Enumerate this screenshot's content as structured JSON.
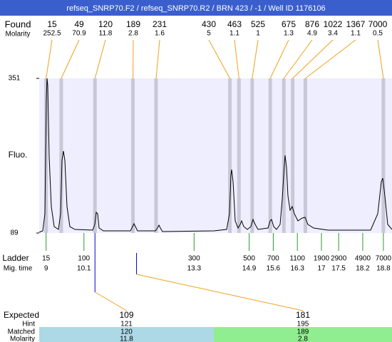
{
  "header": {
    "title": "refseq_SNRP70.F2 / refseq_SNRP70.R2 / BRN 423 / -1 / Well ID 1176106"
  },
  "found": {
    "label": "Found",
    "molarity_label": "Molarity",
    "sizes": [
      15,
      49,
      120,
      189,
      231,
      430,
      463,
      525,
      675,
      876,
      1022,
      1367,
      7000
    ],
    "molarity": [
      252.5,
      70.9,
      11.8,
      2.8,
      1.6,
      5,
      1.1,
      1,
      1.3,
      4.9,
      3.4,
      1.1,
      0.5
    ]
  },
  "plot": {
    "y_label": "Fluo.",
    "ylim": [
      89,
      351
    ],
    "yticks": [
      89,
      351
    ],
    "xlim": [
      8.8,
      19.05
    ]
  },
  "ladder": {
    "label": "Ladder",
    "time_label": "Mig. time",
    "sizes": [
      15,
      100,
      300,
      500,
      700,
      1100,
      1900,
      2900,
      4900,
      7000
    ],
    "mig_times": [
      9,
      10.1,
      13.3,
      14.9,
      15.6,
      16.3,
      17,
      17.5,
      18.2,
      18.8
    ]
  },
  "expected": {
    "expected_label": "Expected",
    "hint_label": "Hint",
    "matched_label": "Matched",
    "molarity_label": "Molarity",
    "rows": [
      {
        "expected": 109,
        "hint": 121,
        "matched": 120,
        "molarity": 11.8
      },
      {
        "expected": 181,
        "hint": 195,
        "matched": 189,
        "molarity": 2.8
      }
    ]
  }
}
